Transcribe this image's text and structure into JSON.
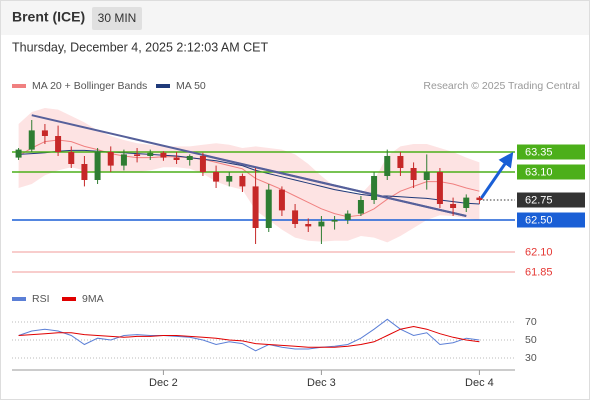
{
  "chart_data": {
    "type": "candlestick",
    "title": "Brent (ICE)",
    "interval": "30 MIN",
    "subtitle": "Thursday, December 4, 2025 2:12:03 AM CET",
    "credit": "Research © 2025 Trading Central",
    "categories": [
      null,
      null,
      null,
      null,
      null,
      null,
      null,
      null,
      null,
      null,
      null,
      "Dec 2",
      null,
      null,
      null,
      null,
      null,
      null,
      null,
      null,
      null,
      null,
      null,
      "Dec 3",
      null,
      null,
      null,
      null,
      null,
      null,
      null,
      null,
      null,
      null,
      null,
      "Dec 4"
    ],
    "ylim": [
      61.7,
      64.0
    ],
    "up_color": "#2e7d32",
    "down_color": "#c62828",
    "candles": {
      "open": [
        63.28,
        63.38,
        63.62,
        63.55,
        63.35,
        63.2,
        63.0,
        63.35,
        63.18,
        63.32,
        63.3,
        63.34,
        63.28,
        63.25,
        63.3,
        63.1,
        62.98,
        63.05,
        62.92,
        62.4,
        62.88,
        62.62,
        62.45,
        62.42,
        62.48,
        62.5,
        62.58,
        62.75,
        63.05,
        63.3,
        63.15,
        63.0,
        63.1,
        62.7,
        62.65,
        62.78
      ],
      "high": [
        63.4,
        63.75,
        63.7,
        63.68,
        63.42,
        63.3,
        63.4,
        63.42,
        63.38,
        63.4,
        63.38,
        63.36,
        63.35,
        63.32,
        63.34,
        63.18,
        63.1,
        63.08,
        63.15,
        62.95,
        62.92,
        62.7,
        62.52,
        62.55,
        62.55,
        62.62,
        62.8,
        63.1,
        63.38,
        63.35,
        63.22,
        63.32,
        63.15,
        62.78,
        62.82,
        62.8
      ],
      "low": [
        63.25,
        63.35,
        63.45,
        63.3,
        63.15,
        62.92,
        62.95,
        63.1,
        63.12,
        63.22,
        63.25,
        63.24,
        63.2,
        63.18,
        63.05,
        62.9,
        62.92,
        62.85,
        62.2,
        62.35,
        62.55,
        62.4,
        62.35,
        62.2,
        62.38,
        62.45,
        62.55,
        62.7,
        63.0,
        63.05,
        62.9,
        62.88,
        62.65,
        62.55,
        62.6,
        62.7
      ],
      "close": [
        63.38,
        63.62,
        63.55,
        63.35,
        63.2,
        63.0,
        63.35,
        63.18,
        63.32,
        63.3,
        63.34,
        63.28,
        63.25,
        63.3,
        63.1,
        62.98,
        63.05,
        62.92,
        62.4,
        62.88,
        62.62,
        62.45,
        62.42,
        62.48,
        62.5,
        62.58,
        62.75,
        63.05,
        63.3,
        63.15,
        63.0,
        63.1,
        62.7,
        62.65,
        62.78,
        62.75
      ]
    },
    "ma20": {
      "name": "MA 20 + Bollinger Bands",
      "color": "#f08080",
      "band_color": "#fde3e3",
      "values": [
        63.3,
        63.4,
        63.48,
        63.5,
        63.48,
        63.42,
        63.38,
        63.33,
        63.3,
        63.28,
        63.28,
        63.29,
        63.29,
        63.28,
        63.26,
        63.22,
        63.18,
        63.14,
        63.02,
        62.95,
        62.88,
        62.8,
        62.72,
        62.64,
        62.58,
        62.54,
        62.56,
        62.64,
        62.76,
        62.86,
        62.92,
        62.98,
        62.98,
        62.95,
        62.9,
        62.86
      ],
      "upper": [
        63.7,
        63.85,
        63.9,
        63.88,
        63.8,
        63.72,
        63.62,
        63.55,
        63.5,
        63.46,
        63.44,
        63.42,
        63.42,
        63.42,
        63.44,
        63.46,
        63.44,
        63.4,
        63.42,
        63.4,
        63.38,
        63.32,
        63.2,
        63.05,
        62.92,
        62.84,
        62.82,
        63.0,
        63.3,
        63.42,
        63.45,
        63.45,
        63.4,
        63.35,
        63.28,
        63.22
      ],
      "lower": [
        62.9,
        62.95,
        63.06,
        63.12,
        63.16,
        63.12,
        63.1,
        63.1,
        63.1,
        63.1,
        63.12,
        63.16,
        63.16,
        63.14,
        63.08,
        62.98,
        62.92,
        62.88,
        62.62,
        62.5,
        62.38,
        62.28,
        62.24,
        62.23,
        62.24,
        62.24,
        62.3,
        62.28,
        62.22,
        62.3,
        62.4,
        62.5,
        62.56,
        62.55,
        62.52,
        62.5
      ]
    },
    "ma50": {
      "name": "MA 50",
      "color": "#1f3a7a",
      "values": [
        63.32,
        63.33,
        63.34,
        63.36,
        63.37,
        63.37,
        63.36,
        63.35,
        63.34,
        63.33,
        63.32,
        63.31,
        63.3,
        63.28,
        63.26,
        63.24,
        63.21,
        63.18,
        63.12,
        63.08,
        63.04,
        63.0,
        62.96,
        62.92,
        62.88,
        62.85,
        62.82,
        62.8,
        62.8,
        62.79,
        62.78,
        62.77,
        62.75,
        62.73,
        62.71,
        62.7
      ]
    },
    "trendlines": [
      {
        "color": "#56609a",
        "points": [
          [
            1,
            63.81
          ],
          [
            34,
            62.55
          ]
        ]
      },
      {
        "color": "#56609a",
        "points": [
          [
            14,
            63.31
          ],
          [
            34,
            62.55
          ]
        ]
      }
    ],
    "levels": [
      {
        "value": 63.35,
        "color": "#4caf1a",
        "boxed": true
      },
      {
        "value": 63.1,
        "label": "63.10",
        "color": "#4caf1a",
        "boxed": true
      },
      {
        "value": 62.75,
        "color": "#333333",
        "boxed": true,
        "dotted": true
      },
      {
        "value": 62.5,
        "label": "62.50",
        "color": "#1a5fd6",
        "boxed": true
      },
      {
        "value": 62.1,
        "label": "62.10",
        "color": "#e53935",
        "boxed": false
      },
      {
        "value": 61.85,
        "color": "#e53935",
        "boxed": false
      }
    ],
    "projection_color": "#1a5fd6",
    "rsi": {
      "ylim": [
        20,
        80
      ],
      "yticks": [
        70,
        50,
        30
      ],
      "series": [
        {
          "name": "RSI",
          "color": "#5b7fd6",
          "values": [
            55,
            60,
            62,
            60,
            55,
            45,
            52,
            50,
            55,
            56,
            55,
            55,
            54,
            53,
            50,
            45,
            48,
            46,
            38,
            45,
            42,
            40,
            40,
            42,
            43,
            45,
            52,
            62,
            73,
            62,
            55,
            58,
            45,
            47,
            52,
            50
          ]
        },
        {
          "name": "9MA",
          "color": "#e00000",
          "values": [
            55,
            56,
            57,
            58,
            58,
            56,
            55,
            54,
            53,
            54,
            54,
            55,
            55,
            54,
            53,
            52,
            50,
            49,
            46,
            45,
            44,
            43,
            42,
            42,
            42,
            43,
            45,
            48,
            55,
            62,
            65,
            62,
            57,
            53,
            50,
            48
          ]
        }
      ]
    }
  }
}
